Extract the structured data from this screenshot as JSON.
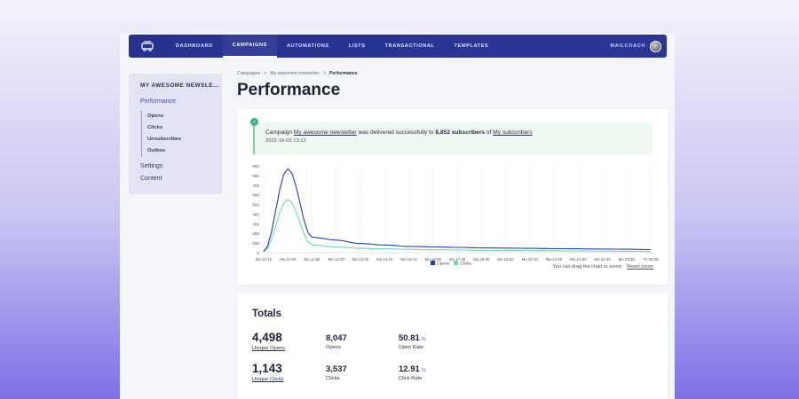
{
  "topbar": {
    "nav": [
      "DASHBOARD",
      "CAMPAIGNS",
      "AUTOMATIONS",
      "LISTS",
      "TRANSACTIONAL",
      "TEMPLATES"
    ],
    "active": "CAMPAIGNS",
    "user": "MAILCOACH"
  },
  "sidebar": {
    "title": "MY AWESOME NEWSLE...",
    "performance": "Performance",
    "sub": [
      "Opens",
      "Clicks",
      "Unsubscribes",
      "Outbox"
    ],
    "settings": "Settings",
    "content": "Content"
  },
  "breadcrumb": {
    "items": [
      "Campaigns",
      "My awesome newsletter",
      "Performance"
    ],
    "separator": ">"
  },
  "page_title": "Performance",
  "alert": {
    "prefix": "Campaign",
    "campaign": "My awesome newsletter",
    "middle": "was delivered successfully to",
    "subscribers": "8,852 subscribers",
    "of": "of",
    "list": "My subscribers",
    "date": "2022-10-03 13:13"
  },
  "chart_data": {
    "type": "line",
    "categories": [
      "Mo 12:10",
      "Mo 11:00",
      "Mo 11:50",
      "Mo 12:40",
      "Mo 13:30",
      "Mo 14:20",
      "Mo 15:10",
      "Mo 16:00",
      "Mo 17:40",
      "Mo 18:30",
      "Mo 19:20",
      "Mo 20:10",
      "Mo 21:00",
      "Mo 21:50",
      "Mo 22:40",
      "Mo 23:30",
      "Tu 00:20"
    ],
    "ylim": [
      0,
      900
    ],
    "yticks": [
      0,
      100,
      200,
      300,
      400,
      500,
      600,
      700,
      800,
      900
    ],
    "series": [
      {
        "name": "Opens",
        "color": "#2c3ea8",
        "values": [
          12,
          870,
          160,
          130,
          95,
          80,
          65,
          60,
          55,
          50,
          48,
          45,
          42,
          40,
          38,
          36,
          32
        ]
      },
      {
        "name": "Clicks",
        "color": "#6ed6b2",
        "values": [
          10,
          550,
          80,
          60,
          45,
          40,
          35,
          30,
          28,
          25,
          23,
          21,
          20,
          18,
          16,
          15,
          12
        ]
      }
    ],
    "grid": "vertical dashed",
    "legend": "bottom-center"
  },
  "chart_note": {
    "text": "You can drag the chart to zoom.",
    "reset": "Reset zoom"
  },
  "totals": {
    "title": "Totals",
    "row1": {
      "unique_opens": "4,498",
      "unique_opens_label": "Unique Opens",
      "opens": "8,047",
      "opens_label": "Opens",
      "open_rate": "50.81",
      "open_rate_label": "Open Rate",
      "pct": "%"
    },
    "row2": {
      "unique_clicks": "1,143",
      "unique_clicks_label": "Unique Clicks",
      "clicks": "3,537",
      "clicks_label": "Clicks",
      "click_rate": "12.91",
      "click_rate_label": "Click Rate"
    }
  }
}
